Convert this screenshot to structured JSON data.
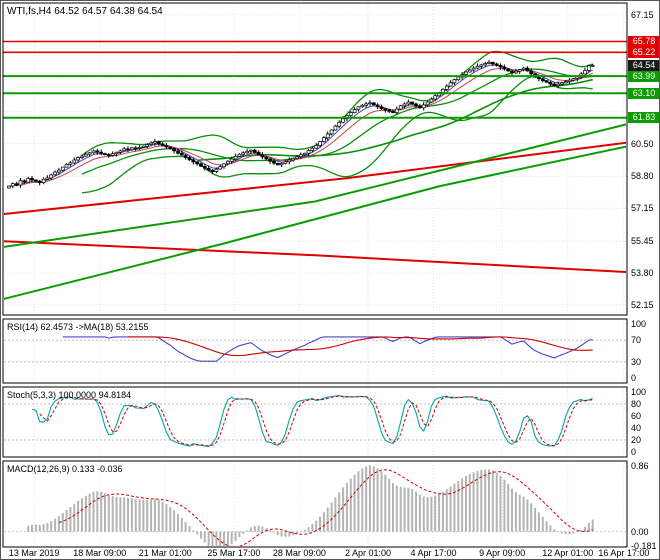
{
  "window": {
    "background": "#ffffff",
    "border_color": "#555555"
  },
  "chart_data": [
    {
      "type": "candlestick",
      "panel": "price",
      "title": "WTI,fs,H4 64.52 64.57 64.38 64.54",
      "symbol": "WTI,fs",
      "timeframe": "H4",
      "last_candle": {
        "open": 64.52,
        "high": 64.57,
        "low": 64.38,
        "close": 64.54
      },
      "ylim": [
        51.63,
        67.77
      ],
      "y_axis_labels": [
        {
          "p": 67.15,
          "t": "67.15"
        },
        {
          "p": 60.5,
          "t": "60.50"
        },
        {
          "p": 58.8,
          "t": "58.80"
        },
        {
          "p": 57.15,
          "t": "57.15"
        },
        {
          "p": 55.45,
          "t": "55.45"
        },
        {
          "p": 53.8,
          "t": "53.80"
        },
        {
          "p": 52.15,
          "t": "52.15"
        }
      ],
      "gridline_prices": [
        52.15,
        53.8,
        55.45,
        57.15,
        58.8,
        60.5,
        62.15,
        63.8,
        65.45,
        67.15
      ],
      "first_open": 58.2,
      "closes": [
        58.3,
        58.42,
        58.35,
        58.58,
        58.5,
        58.7,
        58.62,
        58.55,
        58.48,
        58.65,
        58.72,
        58.88,
        59.02,
        59.12,
        59.28,
        59.42,
        59.5,
        59.65,
        59.78,
        59.85,
        59.95,
        60.02,
        60.12,
        60.05,
        59.98,
        59.92,
        59.88,
        59.97,
        60.05,
        60.12,
        60.22,
        60.18,
        60.28,
        60.24,
        60.3,
        60.36,
        60.45,
        60.52,
        60.6,
        60.48,
        60.4,
        60.32,
        60.24,
        60.12,
        60.0,
        59.9,
        59.78,
        59.66,
        59.55,
        59.45,
        59.32,
        59.22,
        59.12,
        59.05,
        59.18,
        59.3,
        59.45,
        59.58,
        59.7,
        59.84,
        59.95,
        60.02,
        60.1,
        60.16,
        60.05,
        59.92,
        59.8,
        59.7,
        59.58,
        59.48,
        59.4,
        59.48,
        59.56,
        59.65,
        59.74,
        59.82,
        59.92,
        60.0,
        60.14,
        60.26,
        60.4,
        60.6,
        60.8,
        61.0,
        61.2,
        61.4,
        61.6,
        61.78,
        61.95,
        62.1,
        62.26,
        62.4,
        62.48,
        62.55,
        62.6,
        62.5,
        62.4,
        62.3,
        62.24,
        62.16,
        62.1,
        62.28,
        62.45,
        62.55,
        62.65,
        62.55,
        62.45,
        62.35,
        62.5,
        62.65,
        62.8,
        62.97,
        63.14,
        63.3,
        63.47,
        63.64,
        63.8,
        63.94,
        64.07,
        64.2,
        64.3,
        64.4,
        64.5,
        64.57,
        64.64,
        64.7,
        64.62,
        64.54,
        64.45,
        64.35,
        64.25,
        64.15,
        64.24,
        64.32,
        64.4,
        64.25,
        64.1,
        63.95,
        63.85,
        63.75,
        63.67,
        63.58,
        63.5,
        63.57,
        63.64,
        63.7,
        63.78,
        63.86,
        63.95,
        64.1,
        64.28,
        64.52,
        64.54
      ],
      "levels": [
        {
          "price": 65.78,
          "label": "65.78",
          "color": "#e00000",
          "kind": "resistance"
        },
        {
          "price": 65.22,
          "label": "65.22",
          "color": "#e00000",
          "kind": "resistance"
        },
        {
          "price": 63.99,
          "label": "63.99",
          "color": "#0a9c00",
          "kind": "support"
        },
        {
          "price": 63.1,
          "label": "63.10",
          "color": "#0a9c00",
          "kind": "support"
        },
        {
          "price": 61.83,
          "label": "61.83",
          "color": "#0a9c00",
          "kind": "support"
        }
      ],
      "current_price": {
        "value": 64.54,
        "label": "64.54",
        "badge_bg": "#1a1a1a"
      },
      "long_ma_lines": [
        {
          "name": "red-rising-trend-ma",
          "color": "#e00000",
          "width": 2,
          "points": [
            [
              0,
              56.85
            ],
            [
              0.55,
              58.7
            ],
            [
              1,
              60.55
            ]
          ]
        },
        {
          "name": "red-falling-trend-ma",
          "color": "#e00000",
          "width": 2,
          "points": [
            [
              0,
              55.45
            ],
            [
              0.5,
              54.72
            ],
            [
              1,
              53.85
            ]
          ]
        },
        {
          "name": "green-rising-ma-steep",
          "color": "#0a9c00",
          "width": 2,
          "points": [
            [
              0,
              52.45
            ],
            [
              0.35,
              55.3
            ],
            [
              0.7,
              58.3
            ],
            [
              1,
              60.35
            ]
          ]
        },
        {
          "name": "green-rising-ma",
          "color": "#0a9c00",
          "width": 2,
          "points": [
            [
              0,
              55.15
            ],
            [
              0.5,
              57.5
            ],
            [
              1,
              61.5
            ]
          ]
        }
      ],
      "derived_overlays": [
        {
          "type": "bollinger",
          "period": 20,
          "deviation": 2,
          "color": "#0a8f0a"
        },
        {
          "type": "sma",
          "period": 50,
          "color": "#0a8f0a"
        },
        {
          "type": "ema",
          "period": 5,
          "color": "#4343c8"
        },
        {
          "type": "ema",
          "period": 10,
          "color": "#c84343"
        }
      ]
    },
    {
      "type": "line",
      "panel": "rsi",
      "title": "RSI(14) 62.4573 ->MA(18) 53.2155",
      "params": {
        "period": 14,
        "ma_period": 18
      },
      "current": {
        "rsi": 62.4573,
        "ma": 53.2155
      },
      "ylim": [
        0,
        100
      ],
      "level_lines": [
        70,
        30
      ],
      "y_axis_labels": [
        {
          "v": 100,
          "t": "100"
        },
        {
          "v": 70,
          "t": "70"
        },
        {
          "v": 30,
          "t": "30"
        },
        {
          "v": 0,
          "t": "0"
        }
      ],
      "colors": {
        "rsi": "#4646c8",
        "ma": "#cc0000"
      }
    },
    {
      "type": "line",
      "panel": "stoch",
      "title": "Stoch(5,3,3) 100.0000 94.8184",
      "params": {
        "k": 5,
        "d": 3,
        "slowing": 3
      },
      "current": {
        "k": 100.0,
        "d": 94.8184
      },
      "ylim": [
        0,
        100
      ],
      "level_lines": [
        80,
        20
      ],
      "y_axis_labels": [
        {
          "v": 100,
          "t": "100"
        },
        {
          "v": 80,
          "t": "80"
        },
        {
          "v": 60,
          "t": "60"
        },
        {
          "v": 40,
          "t": "40"
        },
        {
          "v": 20,
          "t": "20"
        },
        {
          "v": 0,
          "t": "0"
        }
      ],
      "colors": {
        "k": "#00a8a8",
        "d": "#cc0000"
      }
    },
    {
      "type": "macd",
      "panel": "macd",
      "title": "MACD(12,26,9) 0.133 -0.036",
      "params": {
        "fast": 12,
        "slow": 26,
        "signal": 9
      },
      "current": {
        "macd": 0.133,
        "signal": -0.036
      },
      "ylim": [
        -0.2,
        0.92
      ],
      "histogram_max": 0.86,
      "y_axis_labels": [
        {
          "v": 0.86,
          "t": "0.86"
        },
        {
          "v": 0,
          "t": "0.00"
        },
        {
          "v": -0.181,
          "t": "-0.181"
        }
      ],
      "colors": {
        "histogram": "#b4b4b4",
        "signal": "#cc0000"
      }
    }
  ],
  "x_axis": {
    "labels": [
      {
        "t": "13 Mar 2019",
        "f": 0.05
      },
      {
        "t": "18 Mar 09:00",
        "f": 0.155
      },
      {
        "t": "21 Mar 01:00",
        "f": 0.26
      },
      {
        "t": "25 Mar 17:00",
        "f": 0.37
      },
      {
        "t": "28 Mar 09:00",
        "f": 0.475
      },
      {
        "t": "2 Apr 01:00",
        "f": 0.585
      },
      {
        "t": "4 Apr 17:00",
        "f": 0.69
      },
      {
        "t": "9 Apr 09:00",
        "f": 0.8
      },
      {
        "t": "12 Apr 01:00",
        "f": 0.905
      },
      {
        "t": "16 Apr 17:00",
        "f": 0.995
      }
    ]
  }
}
